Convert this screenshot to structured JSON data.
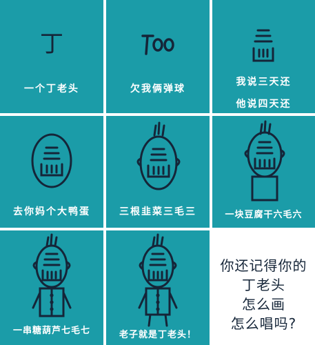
{
  "tiles": [
    {
      "caption": "一个丁老头",
      "glyph": "丁"
    },
    {
      "caption": "欠我俩弹球",
      "glyph": "丆ŏŏ"
    },
    {
      "caption_line1": "我说三天还",
      "caption_line2": "他说四天还"
    },
    {
      "caption": "去你妈个大鸭蛋"
    },
    {
      "caption": "三根韭菜三毛三"
    },
    {
      "caption": "一块豆腐干六毛六"
    },
    {
      "caption": "一串糖葫芦七毛七"
    },
    {
      "caption": "老子就是丁老头！"
    }
  ],
  "question": {
    "line1": "你还记得你的",
    "line2": "丁老头",
    "line3": "怎么画",
    "line4": "怎么唱吗?"
  },
  "colors": {
    "tile_bg": "#1b9ca8",
    "ink": "#152538",
    "caption": "#ffffff"
  }
}
